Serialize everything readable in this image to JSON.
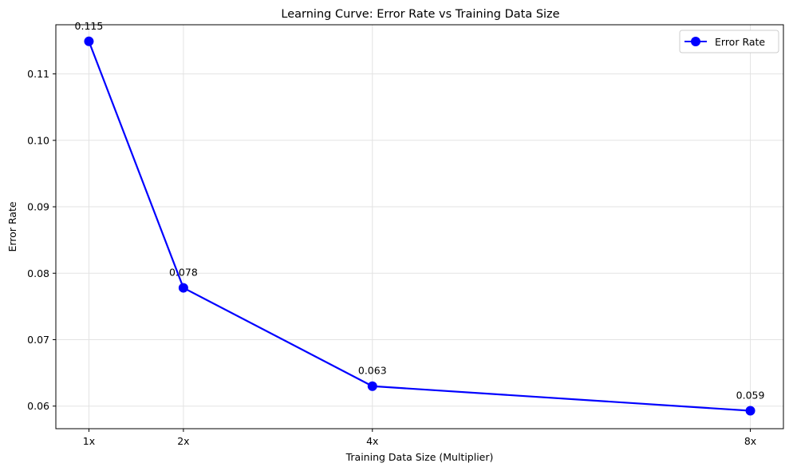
{
  "chart_data": {
    "type": "line",
    "title": "Learning Curve: Error Rate vs Training Data Size",
    "xlabel": "Training Data Size (Multiplier)",
    "ylabel": "Error Rate",
    "x": [
      1,
      2,
      4,
      8
    ],
    "x_tick_labels": [
      "1x",
      "2x",
      "4x",
      "8x"
    ],
    "y_ticks": [
      0.06,
      0.07,
      0.08,
      0.09,
      0.1,
      0.11
    ],
    "y_tick_labels": [
      "0.06",
      "0.07",
      "0.08",
      "0.09",
      "0.10",
      "0.11"
    ],
    "ylim": [
      0.0566,
      0.1174
    ],
    "xlim": [
      0.65,
      8.35
    ],
    "grid": true,
    "legend_position": "top-right",
    "series": [
      {
        "name": "Error Rate",
        "color": "#0000ff",
        "marker": "circle",
        "values": [
          0.1149,
          0.0778,
          0.063,
          0.0593
        ],
        "data_labels": [
          "0.115",
          "0.078",
          "0.063",
          "0.059"
        ]
      }
    ]
  }
}
